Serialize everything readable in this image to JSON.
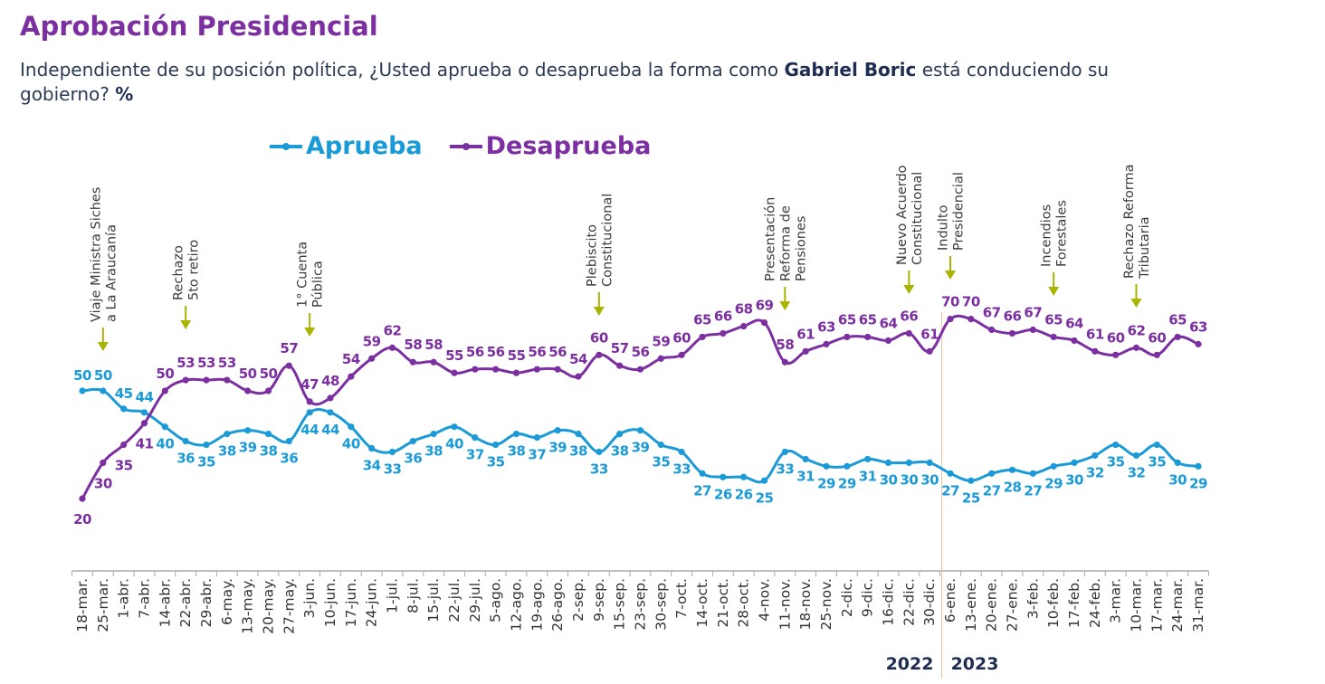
{
  "header": {
    "title": "Aprobación Presidencial",
    "subtitle_pre": "Independiente de su posición política, ¿Usted aprueba o desaprueba la forma como ",
    "subtitle_bold": "Gabriel Boric",
    "subtitle_post": " está conduciendo su gobierno? ",
    "subtitle_unit": "%"
  },
  "colors": {
    "aprueba": "#1a9ad6",
    "desaprueba": "#7b2fa0",
    "annotation_arrow": "#a8b400",
    "annotation_text": "#3a3a3a",
    "axis": "#aaaaaa",
    "year_divider": "#e8c3a8"
  },
  "chart_data": {
    "type": "line",
    "title": "Aprobación Presidencial",
    "xlabel": "",
    "ylabel": "%",
    "ylim": [
      10,
      80
    ],
    "grid": false,
    "legend_position": "top-center",
    "x": [
      "18-mar.",
      "25-mar.",
      "1-abr.",
      "7-abr.",
      "14-abr.",
      "22-abr.",
      "29-abr.",
      "6-may.",
      "13-may.",
      "20-may.",
      "27-may.",
      "3-jun.",
      "10-jun.",
      "17-jun.",
      "24-jun.",
      "1-jul.",
      "8-jul.",
      "15-jul.",
      "22-jul.",
      "29-jul.",
      "5-ago.",
      "12-ago.",
      "19-ago.",
      "26-ago.",
      "2-sep.",
      "9-sep.",
      "15-sep.",
      "23-sep.",
      "30-sep.",
      "7-oct.",
      "14-oct.",
      "21-oct.",
      "28-oct.",
      "4-nov.",
      "11-nov.",
      "18-nov.",
      "25-nov.",
      "2-dic.",
      "9-dic.",
      "16-dic.",
      "22-dic.",
      "30-dic.",
      "6-ene.",
      "13-ene.",
      "20-ene.",
      "27-ene.",
      "3-feb.",
      "10-feb.",
      "17-feb.",
      "24-feb.",
      "3-mar.",
      "10-mar.",
      "17-mar.",
      "24-mar.",
      "31-mar."
    ],
    "series": [
      {
        "name": "Aprueba",
        "values": [
          50,
          50,
          45,
          44,
          40,
          36,
          35,
          38,
          39,
          38,
          36,
          44,
          44,
          40,
          34,
          33,
          36,
          38,
          40,
          37,
          35,
          38,
          37,
          39,
          38,
          33,
          38,
          39,
          35,
          33,
          27,
          26,
          26,
          25,
          33,
          31,
          29,
          29,
          31,
          30,
          30,
          30,
          27,
          25,
          27,
          28,
          27,
          29,
          30,
          32,
          35,
          32,
          35,
          30,
          29
        ]
      },
      {
        "name": "Desaprueba",
        "values": [
          20,
          30,
          35,
          41,
          50,
          53,
          53,
          53,
          50,
          50,
          57,
          47,
          48,
          54,
          59,
          62,
          58,
          58,
          55,
          56,
          56,
          55,
          56,
          56,
          54,
          60,
          57,
          56,
          59,
          60,
          65,
          66,
          68,
          69,
          58,
          61,
          63,
          65,
          65,
          64,
          66,
          61,
          70,
          70,
          67,
          66,
          67,
          65,
          64,
          61,
          60,
          62,
          60,
          65,
          63
        ]
      }
    ],
    "years": [
      {
        "label": "2022",
        "from_index": 0,
        "to_index": 41
      },
      {
        "label": "2023",
        "from_index": 42,
        "to_index": 54
      }
    ],
    "annotations": [
      {
        "index": 1,
        "lines": [
          "Viaje Ministra Siches",
          "a La Araucanía"
        ]
      },
      {
        "index": 5,
        "lines": [
          "Rechazo",
          "5to retiro"
        ]
      },
      {
        "index": 11,
        "lines": [
          "1° Cuenta",
          "Pública"
        ]
      },
      {
        "index": 25,
        "lines": [
          "Plebiscito",
          "Constitucional"
        ]
      },
      {
        "index": 34,
        "lines": [
          "Presentación",
          "Reforma de",
          "Pensiones"
        ]
      },
      {
        "index": 40,
        "lines": [
          "Nuevo Acuerdo",
          "Constitucional"
        ]
      },
      {
        "index": 42,
        "lines": [
          "Indulto",
          "Presidencial"
        ]
      },
      {
        "index": 47,
        "lines": [
          "Incendios",
          "Forestales"
        ]
      },
      {
        "index": 51,
        "lines": [
          "Rechazo Reforma",
          "Tributaria"
        ]
      }
    ]
  }
}
